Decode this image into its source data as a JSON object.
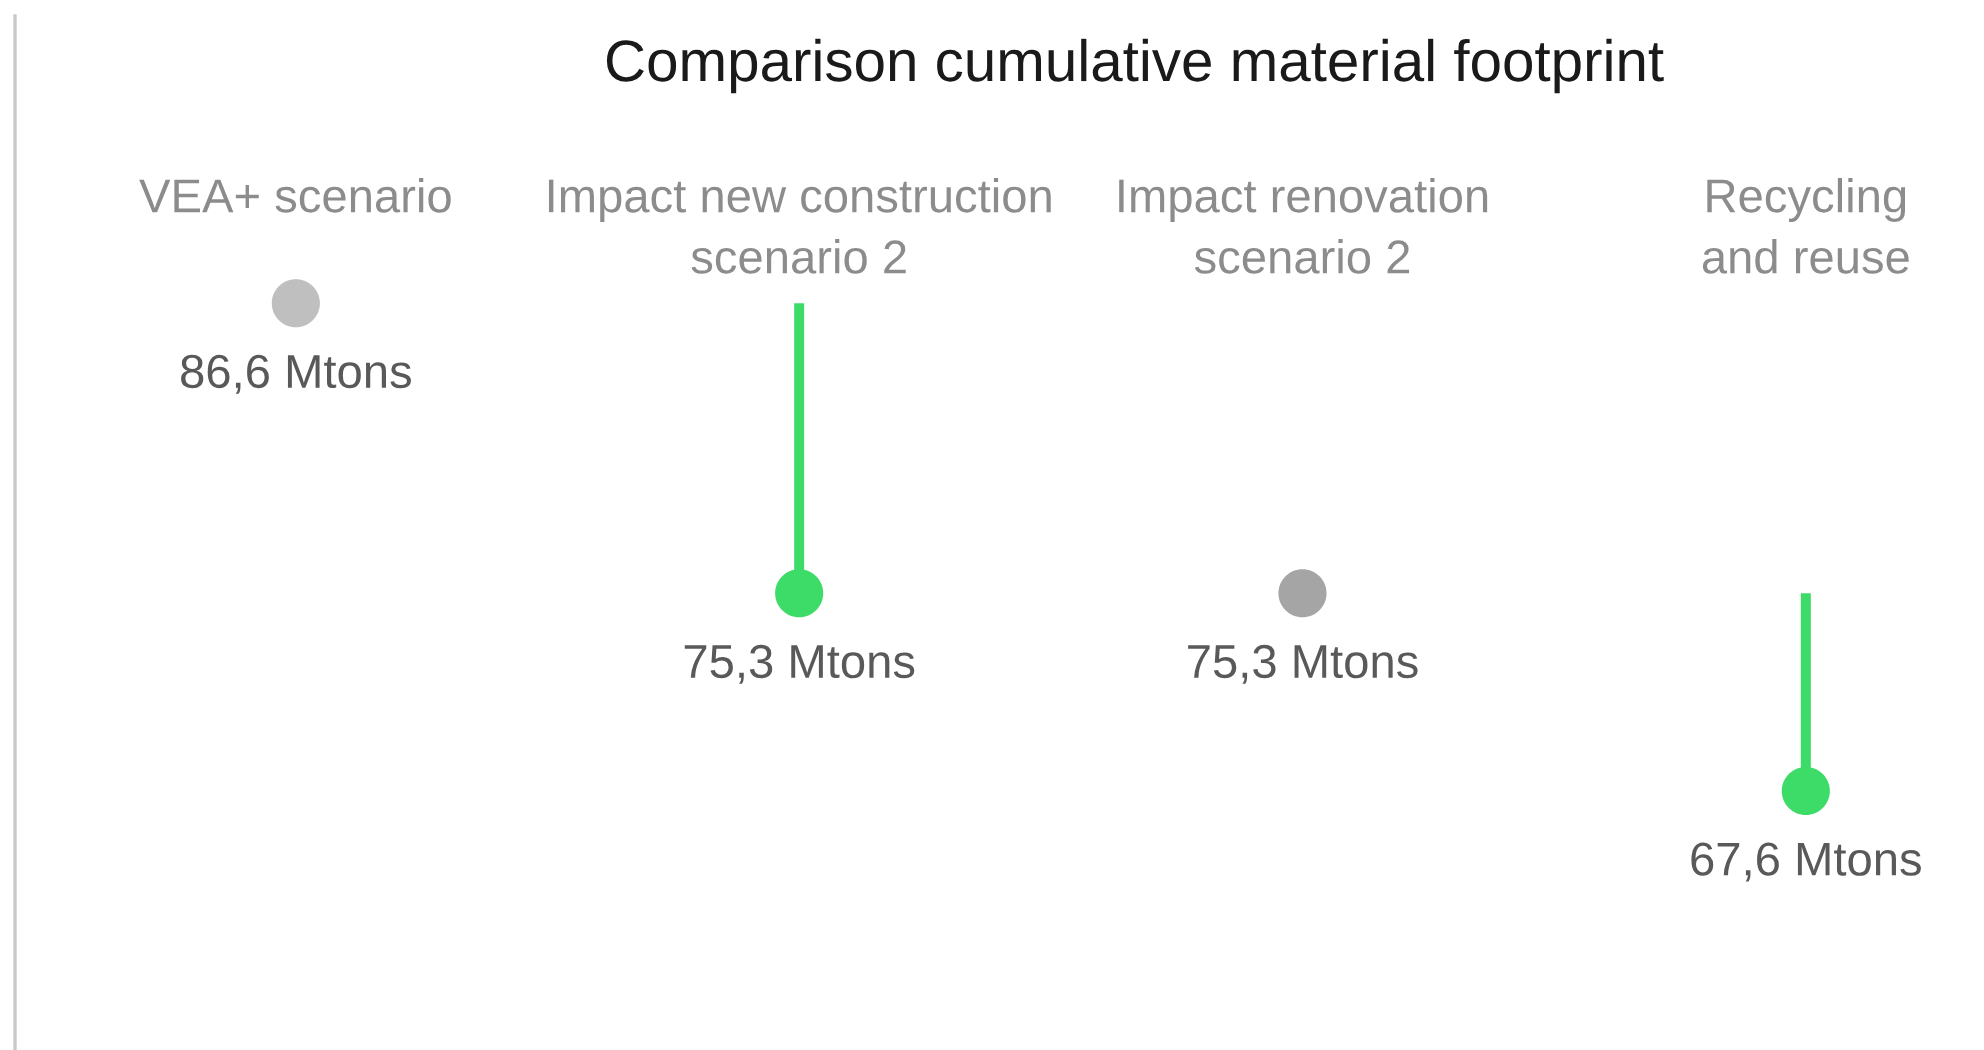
{
  "chart_data": {
    "type": "lollipop",
    "title": "Comparison cumulative material footprint",
    "categories": [
      "VEA+ scenario",
      "Impact new construction\nscenario 2",
      "Impact renovation\nscenario 2",
      "Recycling\nand reuse"
    ],
    "values": [
      86.6,
      75.3,
      75.3,
      67.6
    ],
    "colors": [
      "#bfbfbf",
      "#3ddc68",
      "#a5a5a5",
      "#3ddc68"
    ],
    "value_labels": [
      "86,6 Mtons",
      "75,3 Mtons",
      "75,3 Mtons",
      "67,6 Mtons"
    ],
    "tick_labels": "x",
    "marker": "circle"
  }
}
